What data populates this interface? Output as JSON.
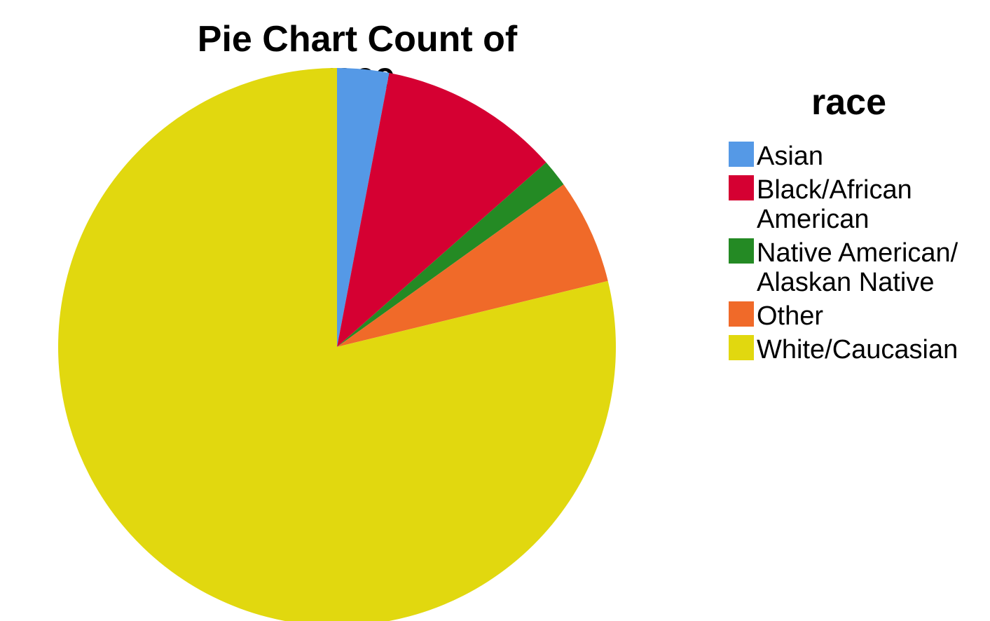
{
  "chart_data": {
    "type": "pie",
    "title": "Pie Chart Count of race",
    "legend_title": "race",
    "legend_position": "right",
    "categories": [
      "Asian",
      "Black/African\nAmerican",
      "Native American/\nAlaskan Native",
      "Other",
      "White/Caucasian"
    ],
    "values": [
      3.0,
      10.5,
      1.6,
      6.1,
      78.8
    ],
    "colors": [
      "#5599e6",
      "#d50032",
      "#248a24",
      "#f06a29",
      "#e1d80f"
    ]
  }
}
